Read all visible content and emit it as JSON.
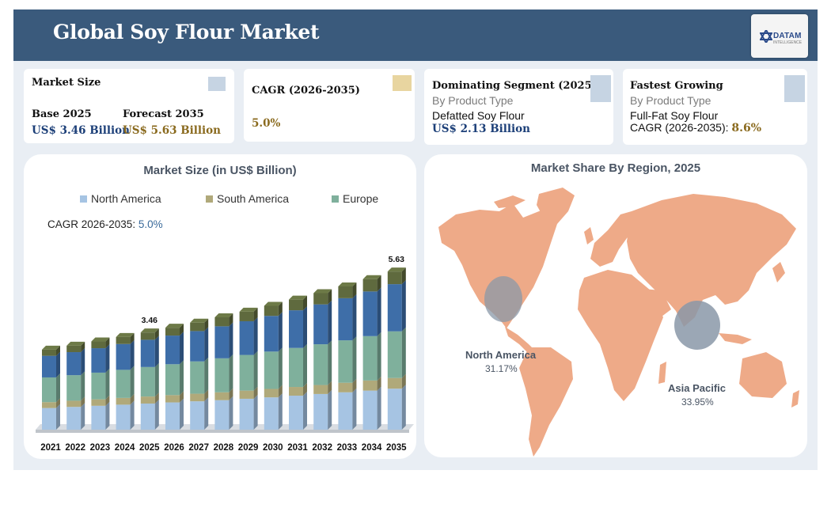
{
  "header": {
    "title": "Global Soy Flour Market",
    "logo_text": "DATAM",
    "logo_sub": "INTELLIGENCE"
  },
  "cards": {
    "market_size": {
      "title": "Market Size",
      "base_label": "Base 2025",
      "base_value": "US$ 3.46 Billion",
      "forecast_label": "Forecast 2035",
      "forecast_value": "US$ 5.63 Billion"
    },
    "cagr": {
      "title": "CAGR (2026-2035)",
      "value": "5.0%"
    },
    "dominating": {
      "title": "Dominating Segment (2025)",
      "sub": "By Product Type",
      "segment": "Defatted Soy Flour",
      "value": "US$ 2.13 Billion"
    },
    "fastest": {
      "title": "Fastest Growing",
      "sub": "By Product Type",
      "segment": "Full-Fat Soy Flour",
      "cagr_label": "CAGR (2026-2035):",
      "cagr_value": "8.6%"
    }
  },
  "colors": {
    "header": "#3a5a7c",
    "north_america": "#a6c4e3",
    "south_america": "#b0a97a",
    "europe": "#7fb09c",
    "top_segment": "#3e6ea8",
    "cap": "#5f6a3e",
    "map_land": "#eeaa88",
    "bubble": "#8a98a8"
  },
  "chart_data": [
    {
      "type": "bar",
      "title": "Market Size (in US$ Billion)",
      "legend": [
        "North America",
        "South America",
        "Europe"
      ],
      "cagr_label": "CAGR 2026-2035:",
      "cagr_value": "5.0%",
      "categories": [
        "2021",
        "2022",
        "2023",
        "2024",
        "2025",
        "2026",
        "2027",
        "2028",
        "2029",
        "2030",
        "2031",
        "2032",
        "2033",
        "2034",
        "2035"
      ],
      "totals": [
        2.85,
        2.99,
        3.14,
        3.3,
        3.46,
        3.63,
        3.81,
        4.0,
        4.2,
        4.41,
        4.63,
        4.86,
        5.1,
        5.36,
        5.63
      ],
      "data_labels": {
        "2025": "3.46",
        "2035": "5.63"
      },
      "series": [
        {
          "name": "North America",
          "values": [
            0.77,
            0.81,
            0.85,
            0.89,
            0.93,
            0.97,
            1.01,
            1.05,
            1.1,
            1.15,
            1.21,
            1.27,
            1.33,
            1.39,
            1.46
          ]
        },
        {
          "name": "South America",
          "values": [
            0.21,
            0.22,
            0.23,
            0.24,
            0.25,
            0.26,
            0.27,
            0.28,
            0.29,
            0.3,
            0.31,
            0.32,
            0.34,
            0.36,
            0.38
          ]
        },
        {
          "name": "Europe",
          "values": [
            0.88,
            0.91,
            0.95,
            1.0,
            1.05,
            1.1,
            1.15,
            1.21,
            1.27,
            1.33,
            1.39,
            1.45,
            1.51,
            1.58,
            1.66
          ]
        },
        {
          "name": "",
          "values": [
            0.77,
            0.82,
            0.87,
            0.92,
            0.97,
            1.02,
            1.08,
            1.14,
            1.2,
            1.27,
            1.34,
            1.42,
            1.5,
            1.59,
            1.68
          ]
        },
        {
          "name": "",
          "values": [
            0.22,
            0.23,
            0.24,
            0.25,
            0.26,
            0.28,
            0.3,
            0.32,
            0.34,
            0.36,
            0.38,
            0.4,
            0.42,
            0.44,
            0.45
          ]
        }
      ]
    },
    {
      "type": "map",
      "title": "Market Share By Region, 2025",
      "regions": [
        {
          "name": "North America",
          "share": "31.17%"
        },
        {
          "name": "Asia Pacific",
          "share": "33.95%"
        }
      ]
    }
  ]
}
